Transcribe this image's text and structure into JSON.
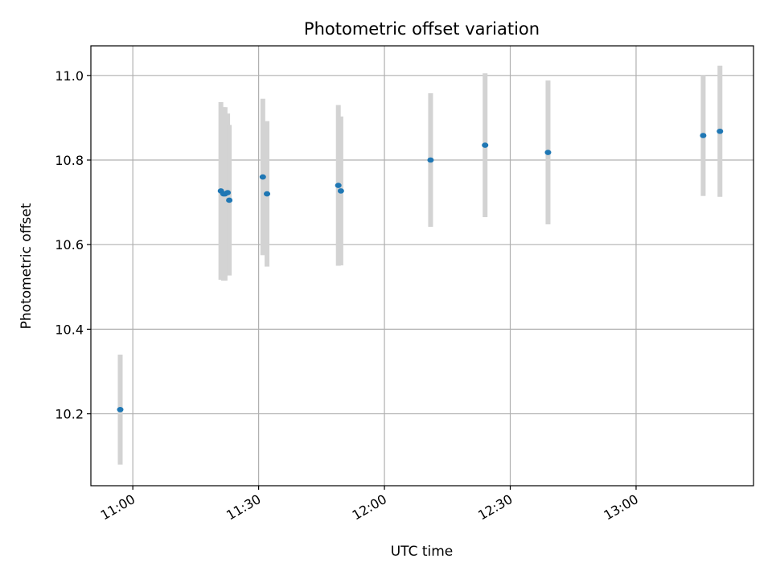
{
  "chart_data": {
    "type": "scatter",
    "title": "Photometric offset variation",
    "xlabel": "UTC time",
    "ylabel": "Photometric offset",
    "x_axis": "time (HH:MM UTC)",
    "xlim": [
      "10:50",
      "13:28"
    ],
    "ylim": [
      10.03,
      11.07
    ],
    "x_ticks": [
      "11:00",
      "11:30",
      "12:00",
      "12:30",
      "13:00"
    ],
    "y_ticks": [
      10.2,
      10.4,
      10.6,
      10.8,
      11.0
    ],
    "grid": true,
    "marker_color": "#1f77b4",
    "errorbar_color": "#d3d3d3",
    "points": [
      {
        "x": "10:57",
        "y": 10.21,
        "err": 0.13
      },
      {
        "x": "11:21",
        "y": 10.727,
        "err": 0.21
      },
      {
        "x": "11:21",
        "y": 10.72,
        "err": 0.205
      },
      {
        "x": "11:22",
        "y": 10.72,
        "err": 0.205
      },
      {
        "x": "11:22",
        "y": 10.723,
        "err": 0.187
      },
      {
        "x": "11:23",
        "y": 10.705,
        "err": 0.178
      },
      {
        "x": "11:31",
        "y": 10.76,
        "err": 0.185
      },
      {
        "x": "11:32",
        "y": 10.72,
        "err": 0.172
      },
      {
        "x": "11:49",
        "y": 10.74,
        "err": 0.19
      },
      {
        "x": "11:49",
        "y": 10.727,
        "err": 0.176
      },
      {
        "x": "12:11",
        "y": 10.8,
        "err": 0.158
      },
      {
        "x": "12:24",
        "y": 10.835,
        "err": 0.17
      },
      {
        "x": "12:39",
        "y": 10.818,
        "err": 0.17
      },
      {
        "x": "13:16",
        "y": 10.858,
        "err": 0.143
      },
      {
        "x": "13:20",
        "y": 10.868,
        "err": 0.155
      }
    ]
  }
}
